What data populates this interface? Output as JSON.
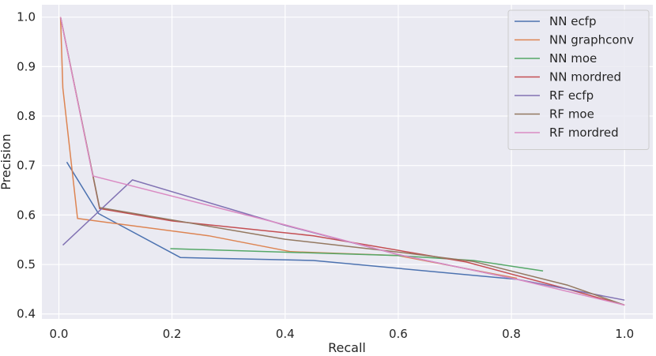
{
  "chart_data": {
    "type": "line",
    "title": "",
    "xlabel": "Recall",
    "ylabel": "Precision",
    "xlim": [
      -0.03,
      1.05
    ],
    "ylim": [
      0.39,
      1.025
    ],
    "xticks": [
      0.0,
      0.2,
      0.4,
      0.6,
      0.8,
      1.0
    ],
    "xtick_labels": [
      "0.0",
      "0.2",
      "0.4",
      "0.6",
      "0.8",
      "1.0"
    ],
    "yticks": [
      0.4,
      0.5,
      0.6,
      0.7,
      0.8,
      0.9,
      1.0
    ],
    "ytick_labels": [
      "0.4",
      "0.5",
      "0.6",
      "0.7",
      "0.8",
      "0.9",
      "1.0"
    ],
    "grid": true,
    "legend_position": "top-right",
    "series": [
      {
        "name": "NN ecfp",
        "color": "#4c72b0",
        "x": [
          0.014,
          0.07,
          0.215,
          0.45,
          0.81
        ],
        "y": [
          0.707,
          0.603,
          0.514,
          0.508,
          0.47
        ]
      },
      {
        "name": "NN graphconv",
        "color": "#dd8452",
        "x": [
          0.003,
          0.007,
          0.033,
          0.265,
          0.41,
          0.6,
          0.81
        ],
        "y": [
          1.0,
          0.857,
          0.593,
          0.558,
          0.526,
          0.518,
          0.472
        ]
      },
      {
        "name": "NN moe",
        "color": "#55a868",
        "x": [
          0.197,
          0.6,
          0.733,
          0.856
        ],
        "y": [
          0.532,
          0.518,
          0.508,
          0.487
        ]
      },
      {
        "name": "NN mordred",
        "color": "#c44e52",
        "x": [
          0.003,
          0.072,
          0.2,
          0.45,
          0.72,
          0.9,
          1.0
        ],
        "y": [
          1.0,
          0.613,
          0.588,
          0.558,
          0.505,
          0.45,
          0.418
        ]
      },
      {
        "name": "RF ecfp",
        "color": "#8172b3",
        "x": [
          0.007,
          0.13,
          0.4,
          0.6,
          0.81,
          1.0
        ],
        "y": [
          0.539,
          0.671,
          0.579,
          0.52,
          0.47,
          0.428
        ]
      },
      {
        "name": "RF moe",
        "color": "#937860",
        "x": [
          0.003,
          0.072,
          0.4,
          0.6,
          0.733,
          0.9,
          1.0
        ],
        "y": [
          1.0,
          0.615,
          0.551,
          0.525,
          0.506,
          0.458,
          0.418
        ]
      },
      {
        "name": "RF mordred",
        "color": "#da8bc3",
        "x": [
          0.003,
          0.06,
          0.4,
          0.6,
          0.81,
          1.0
        ],
        "y": [
          1.0,
          0.679,
          0.58,
          0.52,
          0.47,
          0.418
        ]
      }
    ]
  }
}
